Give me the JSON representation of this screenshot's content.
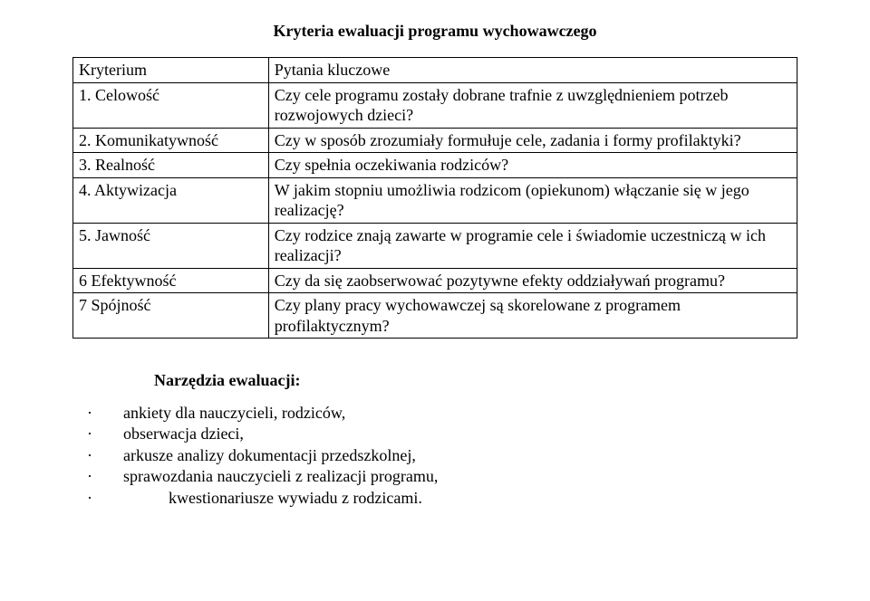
{
  "title": "Kryteria ewaluacji programu wychowawczego",
  "table": {
    "rows": [
      {
        "crit": "Kryterium",
        "q": "Pytania kluczowe"
      },
      {
        "crit": "1. Celowość",
        "q": "Czy cele programu zostały dobrane trafnie z uwzględnieniem potrzeb rozwojowych dzieci?"
      },
      {
        "crit": "2. Komunikatywność",
        "q": "Czy w sposób zrozumiały formułuje cele, zadania i formy profilaktyki?"
      },
      {
        "crit": "3. Realność",
        "q": "Czy spełnia oczekiwania rodziców?"
      },
      {
        "crit": "4. Aktywizacja",
        "q": "W jakim stopniu umożliwia rodzicom (opiekunom) włączanie się w jego realizację?"
      },
      {
        "crit": "5. Jawność",
        "q": "Czy rodzice znają zawarte w programie cele i świadomie uczestniczą w ich realizacji?"
      },
      {
        "crit": "6 Efektywność",
        "q": "Czy da się zaobserwować pozytywne efekty oddziaływań programu?"
      },
      {
        "crit": "7 Spójność",
        "q": "Czy plany pracy wychowawczej są skorelowane z programem profilaktycznym?"
      }
    ]
  },
  "toolsHeading": "Narzędzia ewaluacji:",
  "tools": [
    "ankiety dla nauczycieli, rodziców,",
    "obserwacja dzieci,",
    "arkusze analizy dokumentacji przedszkolnej,",
    "sprawozdania nauczycieli z realizacji programu,",
    "kwestionariusze wywiadu z rodzicami."
  ]
}
